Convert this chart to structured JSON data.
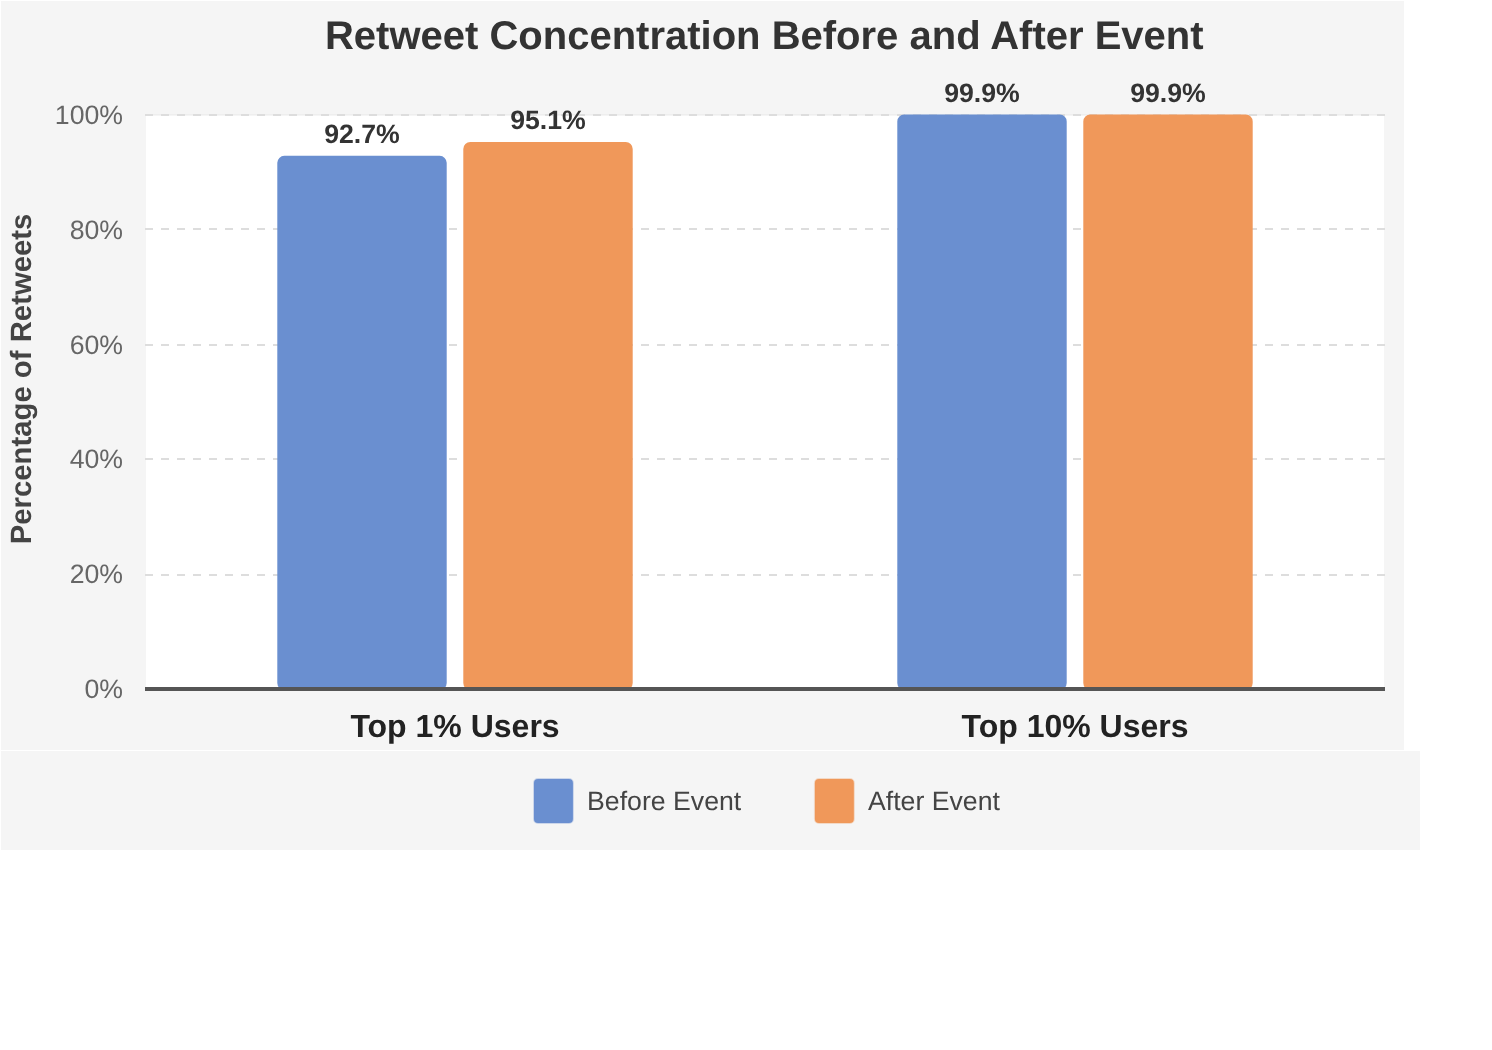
{
  "chart_data": {
    "type": "bar",
    "title": "Retweet Concentration Before and After Event",
    "ylabel": "Percentage of Retweets",
    "categories": [
      "Top 1% Users",
      "Top 10% Users"
    ],
    "series": [
      {
        "name": "Before Event",
        "color": "#6a8fd0",
        "values": [
          92.7,
          99.9
        ],
        "value_labels": [
          "92.7%",
          "99.9%"
        ]
      },
      {
        "name": "After Event",
        "color": "#f0985a",
        "values": [
          95.1,
          99.9
        ],
        "value_labels": [
          "95.1%",
          "99.9%"
        ]
      }
    ],
    "ylim": [
      0,
      100
    ],
    "yticks": [
      {
        "value": 0,
        "label": "0%"
      },
      {
        "value": 20,
        "label": "20%"
      },
      {
        "value": 40,
        "label": "40%"
      },
      {
        "value": 60,
        "label": "60%"
      },
      {
        "value": 80,
        "label": "80%"
      },
      {
        "value": 100,
        "label": "100%"
      }
    ],
    "grid": "y",
    "legend": "bottom"
  }
}
